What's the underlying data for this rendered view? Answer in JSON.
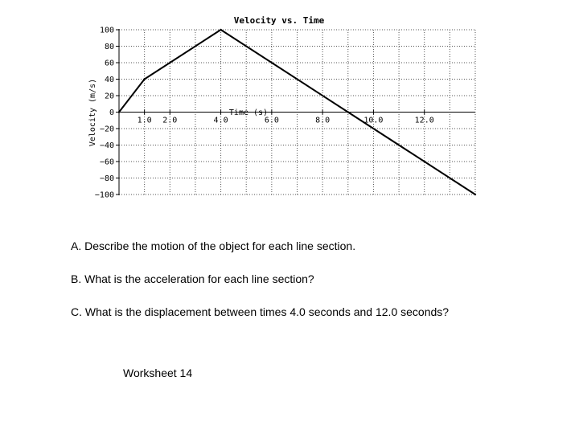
{
  "chart_data": {
    "type": "line",
    "title": "Velocity vs. Time",
    "xlabel": "Time (s)",
    "ylabel": "Velocity (m/s)",
    "xlim": [
      0,
      14
    ],
    "ylim": [
      -100,
      100
    ],
    "x_ticks": [
      {
        "value": 1,
        "label": "1.0"
      },
      {
        "value": 2,
        "label": "2.0"
      },
      {
        "value": 4,
        "label": "4.0"
      },
      {
        "value": 6,
        "label": "6.0"
      },
      {
        "value": 8,
        "label": "8.0"
      },
      {
        "value": 10,
        "label": "10.0"
      },
      {
        "value": 12,
        "label": "12.0"
      }
    ],
    "y_ticks": [
      {
        "value": 100,
        "label": "100"
      },
      {
        "value": 80,
        "label": "80"
      },
      {
        "value": 60,
        "label": "60"
      },
      {
        "value": 40,
        "label": "40"
      },
      {
        "value": 20,
        "label": "20"
      },
      {
        "value": 0,
        "label": "0"
      },
      {
        "value": -20,
        "label": "−20"
      },
      {
        "value": -40,
        "label": "−40"
      },
      {
        "value": -60,
        "label": "−60"
      },
      {
        "value": -80,
        "label": "−80"
      },
      {
        "value": -100,
        "label": "−100"
      }
    ],
    "grid": true,
    "series": [
      {
        "x": [
          0,
          1,
          4,
          9,
          14
        ],
        "y": [
          0,
          40,
          100,
          0,
          -100
        ]
      }
    ]
  },
  "questions": {
    "a": "A. Describe the motion of the object for each line section.",
    "b": "B. What is the acceleration for each line section?",
    "c": "C. What is the displacement between times 4.0 seconds and 12.0 seconds?"
  },
  "footer": "Worksheet 14"
}
